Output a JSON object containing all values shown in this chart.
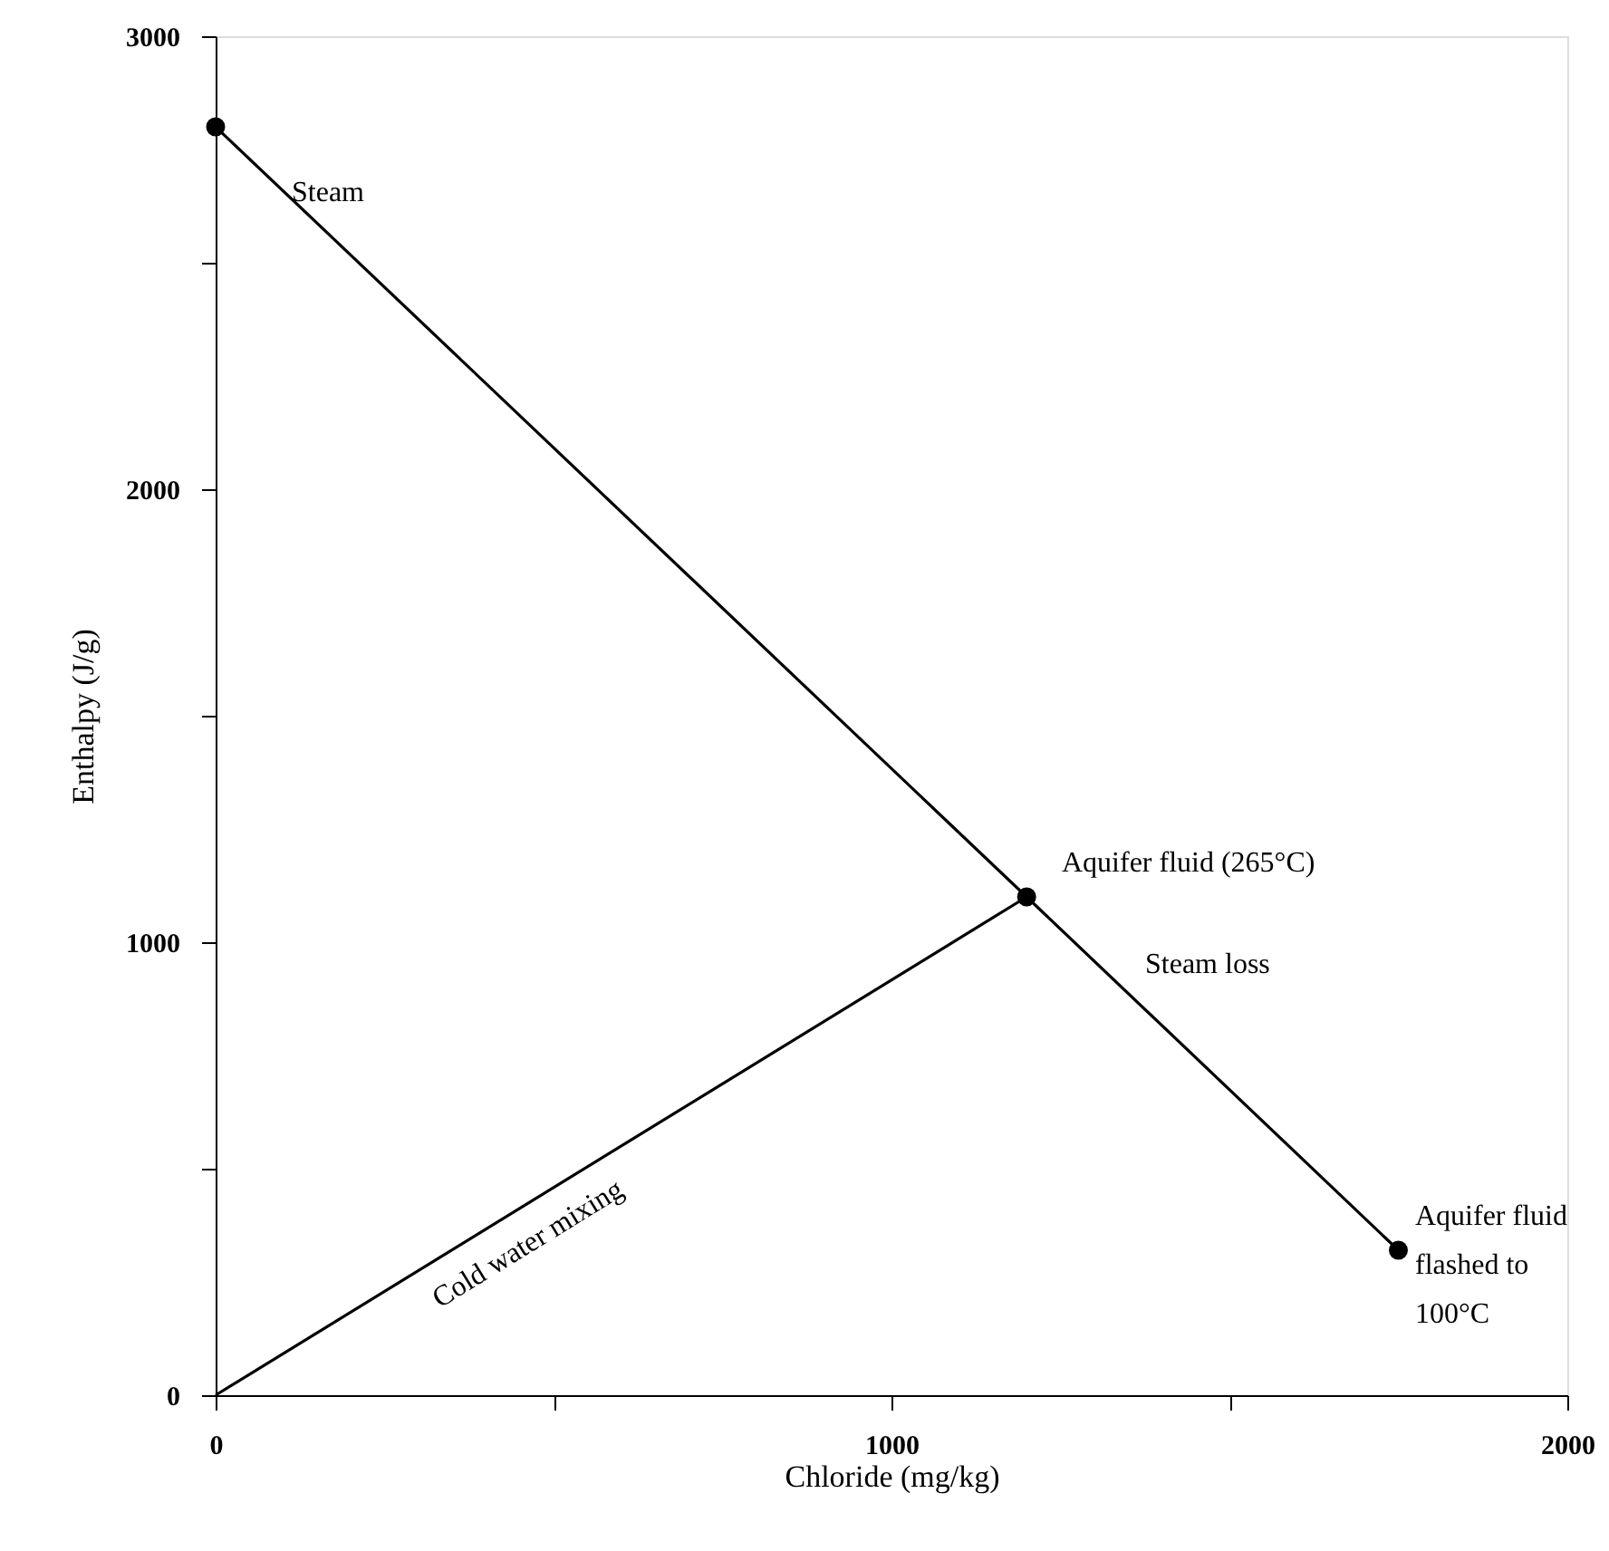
{
  "chart_data": {
    "type": "line",
    "xlabel": "Chloride (mg/kg)",
    "ylabel": "Enthalpy (J/g)",
    "xlim": [
      0,
      2000
    ],
    "ylim": [
      0,
      3000
    ],
    "xticks": [
      0,
      {
        "value": 500,
        "label": null
      },
      1000,
      {
        "value": 1500,
        "label": null
      },
      2000
    ],
    "yticks": [
      0,
      {
        "value": 500,
        "label": null
      },
      1000,
      {
        "value": 1500,
        "label": null
      },
      2000,
      {
        "value": 2500,
        "label": null
      },
      3000
    ],
    "grid": false,
    "series": [
      {
        "color": "#000000",
        "x": [
          0,
          1200,
          1750
        ],
        "values": [
          2800,
          1100,
          320
        ],
        "marker": "circle",
        "line_style": "solid"
      },
      {
        "color": "#000000",
        "x": [
          0,
          1200
        ],
        "values": [
          0,
          1100
        ],
        "marker": "none",
        "line_style": "solid"
      }
    ],
    "annotations": [
      "Steam",
      "Aquifer fluid (265°C)",
      "Steam loss",
      "Cold water mixing",
      "Aquifer fluid\nflashed to\n100°C"
    ]
  }
}
